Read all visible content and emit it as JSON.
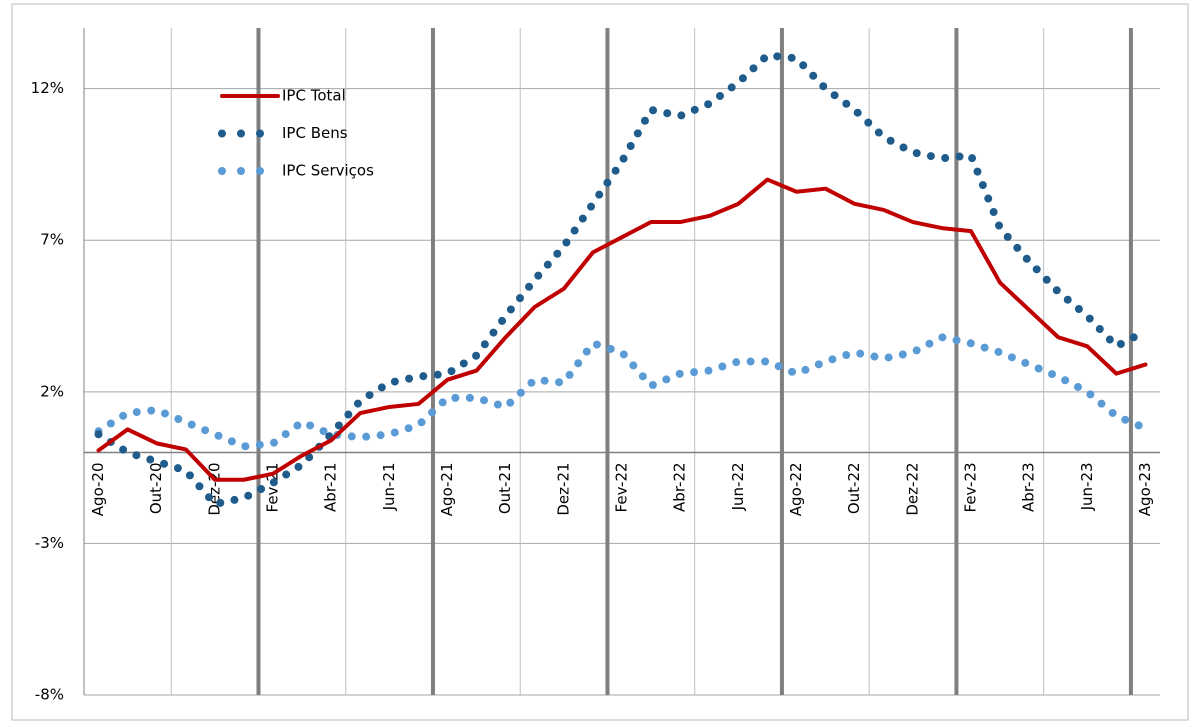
{
  "chart_data": {
    "type": "line",
    "categories": [
      "Ago-20",
      null,
      "Out-20",
      null,
      "Dez-20",
      null,
      "Fev-21",
      null,
      "Abr-21",
      null,
      "Jun-21",
      null,
      "Ago-21",
      null,
      "Out-21",
      null,
      "Dez-21",
      null,
      "Fev-22",
      null,
      "Abr-22",
      null,
      "Jun-22",
      null,
      "Ago-22",
      null,
      "Out-22",
      null,
      "Dez-22",
      null,
      "Fev-23",
      null,
      "Abr-23",
      null,
      "Jun-23",
      null,
      "Ago-23"
    ],
    "series": [
      {
        "name": "IPC Total",
        "color": "#c00000",
        "style": "solid",
        "values": [
          0.07,
          0.76,
          0.3,
          0.1,
          -0.9,
          -0.9,
          -0.7,
          -0.1,
          0.4,
          1.3,
          1.5,
          1.6,
          2.4,
          2.7,
          3.8,
          4.8,
          5.4,
          6.6,
          7.1,
          7.6,
          7.6,
          7.8,
          8.2,
          9.0,
          8.6,
          8.7,
          8.2,
          8.0,
          7.6,
          7.4,
          7.3,
          5.6,
          4.7,
          3.8,
          3.5,
          2.6,
          2.9
        ]
      },
      {
        "name": "IPC Bens",
        "color": "#1f5c8b",
        "style": "dotted",
        "values": [
          0.6,
          0.0,
          -0.3,
          -0.6,
          -1.7,
          -1.5,
          -1.0,
          -0.4,
          0.6,
          1.7,
          2.3,
          2.5,
          2.6,
          3.2,
          4.5,
          5.7,
          6.8,
          8.2,
          9.6,
          11.3,
          11.1,
          11.5,
          12.2,
          13.1,
          13.0,
          12.0,
          11.3,
          10.4,
          9.9,
          9.7,
          9.8,
          7.4,
          6.3,
          5.3,
          4.5,
          3.5,
          4.0
        ]
      },
      {
        "name": "IPC Serviços",
        "color": "#5b9bd5",
        "style": "dotted",
        "values": [
          0.7,
          1.3,
          1.4,
          1.0,
          0.6,
          0.2,
          0.3,
          1.0,
          0.6,
          0.5,
          0.6,
          0.9,
          1.8,
          1.8,
          1.5,
          2.4,
          2.3,
          3.6,
          3.3,
          2.2,
          2.6,
          2.7,
          3.0,
          3.0,
          2.6,
          3.0,
          3.3,
          3.1,
          3.3,
          3.8,
          3.6,
          3.3,
          2.9,
          2.5,
          2.0,
          1.2,
          0.8
        ]
      }
    ],
    "ylim": [
      -8,
      14
    ],
    "yticks": [
      {
        "value": -8,
        "label": "-8%"
      },
      {
        "value": -3,
        "label": "-3%"
      },
      {
        "value": 2,
        "label": "2%"
      },
      {
        "value": 7,
        "label": "7%"
      },
      {
        "value": 12,
        "label": "12%"
      }
    ],
    "grid": true,
    "legend": "upper left"
  }
}
